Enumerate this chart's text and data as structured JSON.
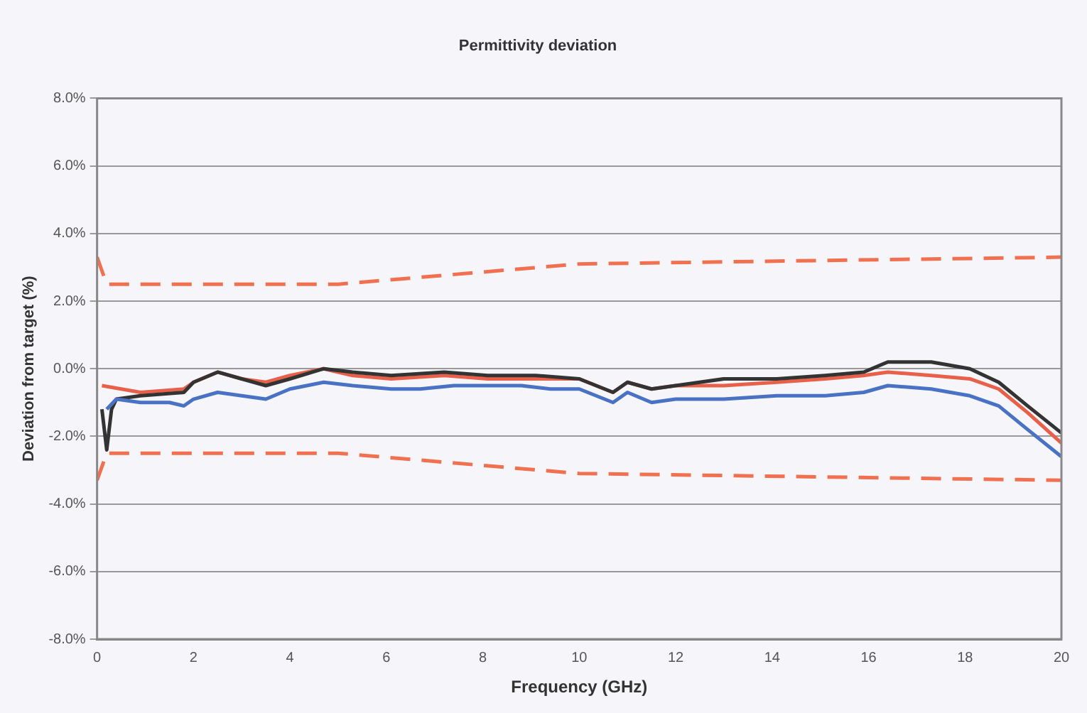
{
  "chart_data": {
    "type": "line",
    "title": "Permittivity deviation",
    "xlabel": "Frequency (GHz)",
    "ylabel": "Deviation from target (%)",
    "xlim": [
      0,
      20
    ],
    "xticks": [
      0,
      2,
      4,
      6,
      8,
      10,
      12,
      14,
      16,
      18,
      20
    ],
    "ylim": [
      -8,
      8
    ],
    "yticks": [
      {
        "value": -8,
        "label": "-8.0%"
      },
      {
        "value": -6,
        "label": "-6.0%"
      },
      {
        "value": -4,
        "label": "-4.0%"
      },
      {
        "value": -2,
        "label": "-2.0%"
      },
      {
        "value": 0,
        "label": "0.0%"
      },
      {
        "value": 2,
        "label": "2.0%"
      },
      {
        "value": 4,
        "label": "4.0%"
      },
      {
        "value": 6,
        "label": "6.0%"
      },
      {
        "value": 8,
        "label": "8.0%"
      }
    ],
    "grid": "y",
    "legend": false,
    "marker": "none",
    "series": [
      {
        "color": "#f07050",
        "line_style": "dashed",
        "x": [
          0,
          0.2,
          5,
          10,
          20
        ],
        "values": [
          3.3,
          2.5,
          2.5,
          3.1,
          3.3
        ]
      },
      {
        "color": "#f07050",
        "line_style": "dashed",
        "x": [
          0,
          0.2,
          5,
          10,
          20
        ],
        "values": [
          -3.3,
          -2.5,
          -2.5,
          -3.1,
          -3.3
        ]
      },
      {
        "color": "#4a72c4",
        "x": [
          0.2,
          0.4,
          0.9,
          1.5,
          1.8,
          2,
          2.5,
          3,
          3.5,
          4,
          4.7,
          5.3,
          6.1,
          6.7,
          7.4,
          8.1,
          8.8,
          9.4,
          10,
          10.7,
          11,
          11.5,
          12,
          13,
          14.1,
          15.1,
          15.9,
          16.4,
          17.3,
          18.1,
          18.7,
          19.3,
          20
        ],
        "values": [
          -1.2,
          -0.9,
          -1.0,
          -1.0,
          -1.1,
          -0.9,
          -0.7,
          -0.8,
          -0.9,
          -0.6,
          -0.4,
          -0.5,
          -0.6,
          -0.6,
          -0.5,
          -0.5,
          -0.5,
          -0.6,
          -0.6,
          -1.0,
          -0.7,
          -1.0,
          -0.9,
          -0.9,
          -0.8,
          -0.8,
          -0.7,
          -0.5,
          -0.6,
          -0.8,
          -1.1,
          -1.8,
          -2.6
        ]
      },
      {
        "color": "#333333",
        "x": [
          0.1,
          0.2,
          0.3,
          0.4,
          0.9,
          1.8,
          2,
          2.5,
          3,
          3.5,
          4,
          4.7,
          5.3,
          6.1,
          7.2,
          8.1,
          9.1,
          10,
          10.7,
          11,
          11.5,
          12,
          13,
          14.1,
          15.1,
          15.9,
          16.4,
          17.3,
          18.1,
          18.7,
          19.3,
          20
        ],
        "values": [
          -1.2,
          -2.4,
          -1.2,
          -0.9,
          -0.8,
          -0.7,
          -0.4,
          -0.1,
          -0.3,
          -0.5,
          -0.3,
          0.0,
          -0.1,
          -0.2,
          -0.1,
          -0.2,
          -0.2,
          -0.3,
          -0.7,
          -0.4,
          -0.6,
          -0.5,
          -0.3,
          -0.3,
          -0.2,
          -0.1,
          0.2,
          0.2,
          0.0,
          -0.4,
          -1.1,
          -1.9
        ]
      },
      {
        "color": "#e8604a",
        "x": [
          0.1,
          0.9,
          1.8,
          2,
          2.5,
          3,
          3.5,
          4,
          4.7,
          5.3,
          6.1,
          7.2,
          8.1,
          9.1,
          10,
          10.7,
          11,
          11.5,
          12,
          13,
          14.1,
          15.1,
          15.9,
          16.4,
          17.3,
          18.1,
          18.7,
          19.3,
          20
        ],
        "values": [
          -0.5,
          -0.7,
          -0.6,
          -0.4,
          -0.1,
          -0.3,
          -0.4,
          -0.2,
          0.0,
          -0.2,
          -0.3,
          -0.2,
          -0.3,
          -0.3,
          -0.3,
          -0.7,
          -0.4,
          -0.6,
          -0.5,
          -0.5,
          -0.4,
          -0.3,
          -0.2,
          -0.1,
          -0.2,
          -0.3,
          -0.6,
          -1.3,
          -2.2
        ]
      }
    ]
  }
}
